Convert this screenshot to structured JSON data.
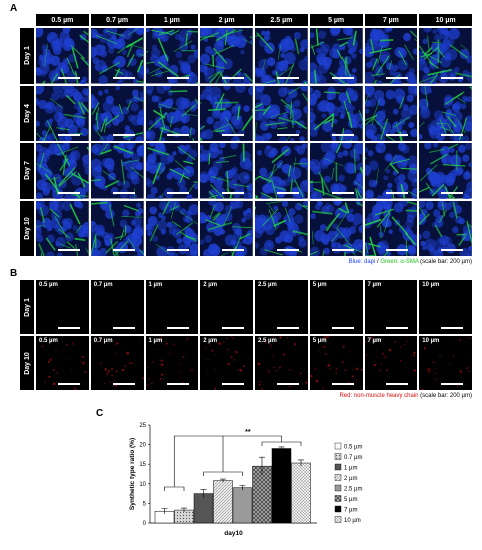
{
  "panel_a": {
    "letter": "A",
    "columns": [
      "0.5 µm",
      "0.7 µm",
      "1 µm",
      "2 µm",
      "2.5 µm",
      "5 µm",
      "7 µm",
      "10 µm"
    ],
    "rows": [
      "Day 1",
      "Day 4",
      "Day 7",
      "Day 10"
    ],
    "caption_blue": "Blue: dapi",
    "caption_sep": " / ",
    "caption_green": "Green: α-SMA",
    "caption_scale": " (scale bar: 200 µm)",
    "colors": {
      "nucleus": "#1e3fd0",
      "fiber": "#22d048",
      "background": "#06103a"
    }
  },
  "panel_b": {
    "letter": "B",
    "rows": [
      "Day 1",
      "Day 10"
    ],
    "labels": [
      "0.5 µm",
      "0.7 µm",
      "1 µm",
      "2 µm",
      "2.5 µm",
      "5 µm",
      "7 µm",
      "10 µm"
    ],
    "caption_red": "Red: non-muscle heavy chain",
    "caption_scale": " (scale bar: 200 µm)",
    "colors": {
      "signal": "#b01010",
      "background": "#000000"
    }
  },
  "panel_c": {
    "letter": "C",
    "significance": "**"
  },
  "chart_data": {
    "type": "bar",
    "categories": [
      "day10"
    ],
    "xlabel": "day10",
    "ylabel": "Synthetic type ratio (%)",
    "ylim": [
      0,
      25
    ],
    "yticks": [
      0,
      5,
      10,
      15,
      20,
      25
    ],
    "series": [
      {
        "name": "0.5 µm",
        "value": 3.0,
        "error": 0.7,
        "fill": "#ffffff",
        "pattern": "none"
      },
      {
        "name": "0.7 µm",
        "value": 3.3,
        "error": 0.5,
        "fill": "#c8c8c8",
        "pattern": "dots"
      },
      {
        "name": "1 µm",
        "value": 7.5,
        "error": 1.0,
        "fill": "#555555",
        "pattern": "none"
      },
      {
        "name": "2 µm",
        "value": 10.8,
        "error": 0.4,
        "fill": "#e6e6e6",
        "pattern": "hatch"
      },
      {
        "name": "2.5 µm",
        "value": 9.0,
        "error": 0.6,
        "fill": "#9a9a9a",
        "pattern": "none"
      },
      {
        "name": "5 µm",
        "value": 14.5,
        "error": 2.3,
        "fill": "#777777",
        "pattern": "checker"
      },
      {
        "name": "7 µm",
        "value": 19.0,
        "error": 0.4,
        "fill": "#000000",
        "pattern": "none"
      },
      {
        "name": "10 µm",
        "value": 15.3,
        "error": 0.8,
        "fill": "#f0f0f0",
        "pattern": "cross"
      }
    ]
  }
}
